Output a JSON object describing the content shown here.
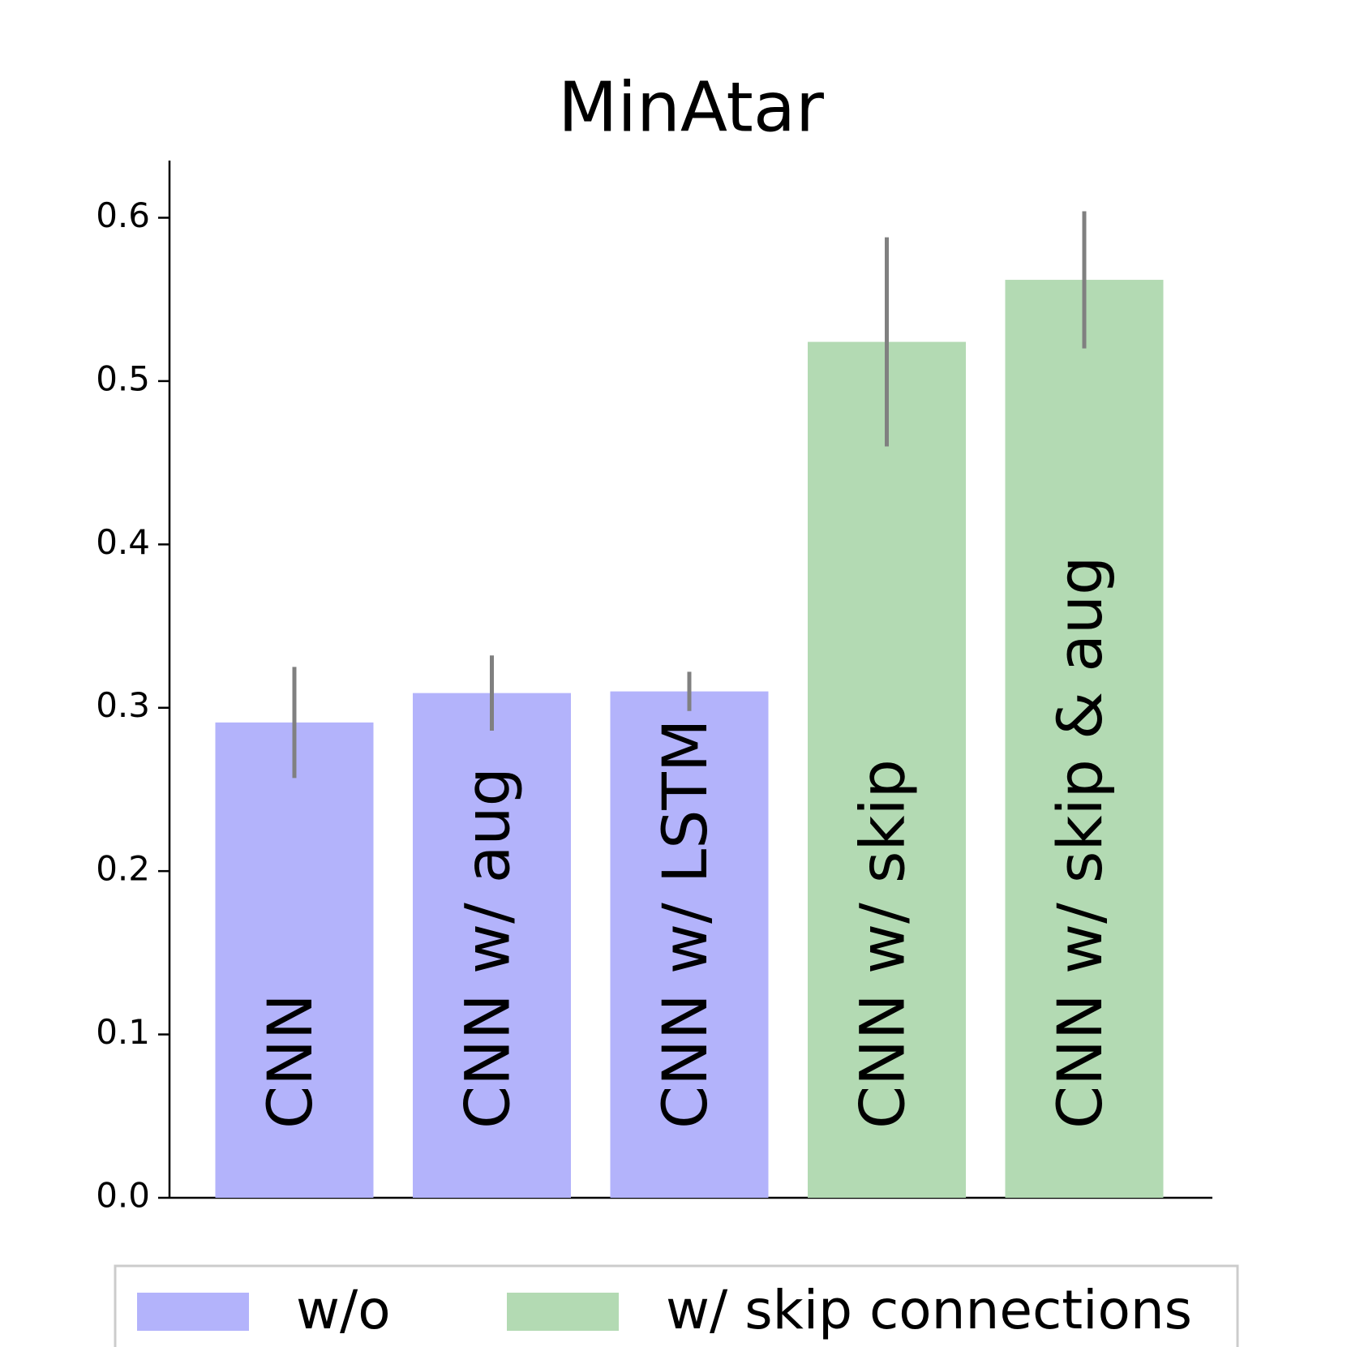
{
  "chart_data": {
    "type": "bar",
    "title": "MinAtar",
    "categories": [
      "CNN",
      "CNN w/ aug",
      "CNN w/ LSTM",
      "CNN w/ skip",
      "CNN w/ skip & aug"
    ],
    "series": [
      {
        "name": "w/o",
        "color": "#b3b3fb",
        "values": [
          0.291,
          0.309,
          0.31,
          null,
          null
        ],
        "errors": [
          0.034,
          0.023,
          0.012,
          null,
          null
        ]
      },
      {
        "name": "w/ skip connections",
        "color": "#b3dab3",
        "values": [
          null,
          null,
          null,
          0.524,
          0.562
        ],
        "errors": [
          null,
          null,
          null,
          0.064,
          0.042
        ]
      }
    ],
    "error_color": "#808080",
    "ylim": [
      0,
      0.635
    ],
    "yticks": [
      {
        "value": 0,
        "label": "0.0"
      },
      0.1,
      0.2,
      0.3,
      0.4,
      0.5,
      0.6
    ],
    "legend": "bottom"
  }
}
